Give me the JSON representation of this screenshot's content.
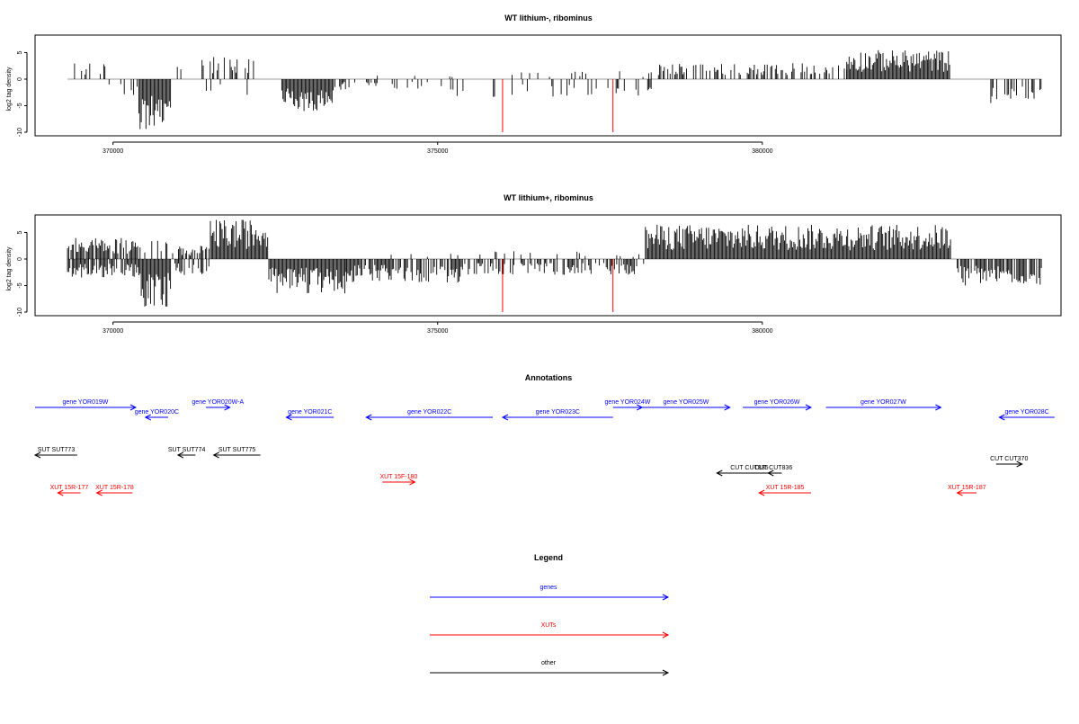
{
  "colors": {
    "gene": "#0000ff",
    "xut": "#ff0000",
    "other": "#000000",
    "highlight": "#ff0000",
    "baseline": "#999999"
  },
  "chart_data": [
    {
      "type": "bar",
      "title": "WT lithium-, ribominus",
      "ylabel": "log2 tag density",
      "xlim": [
        368800,
        384600
      ],
      "ylim": [
        -10,
        8
      ],
      "x_ticks": [
        370000,
        375000,
        380000
      ],
      "x_tick_labels": [
        "370000",
        "375000",
        "380000"
      ],
      "y_ticks": [
        -10,
        -5,
        0,
        5
      ],
      "y_tick_labels": [
        "-10",
        "-5",
        "0",
        "5"
      ],
      "grid": false,
      "highlight_lines": [
        {
          "x": 376000,
          "y": -10
        },
        {
          "x": 377700,
          "y": -10
        }
      ],
      "series": [
        {
          "segments": [
            {
              "from": 369300,
              "to": 369900,
              "sign": 1,
              "max": 3,
              "density": 0.3
            },
            {
              "from": 369850,
              "to": 370400,
              "sign": -1,
              "max": 3,
              "density": 0.2
            },
            {
              "from": 370400,
              "to": 370900,
              "sign": -1,
              "max": 9.5,
              "density": 1
            },
            {
              "from": 370900,
              "to": 371300,
              "sign": 1,
              "max": 3,
              "density": 0.2
            },
            {
              "from": 371300,
              "to": 372200,
              "sign": 1,
              "max": 4.5,
              "density": 0.35
            },
            {
              "from": 371400,
              "to": 372200,
              "sign": -1,
              "max": 3,
              "density": 0.15
            },
            {
              "from": 372600,
              "to": 373400,
              "sign": -1,
              "max": 6.5,
              "density": 1
            },
            {
              "from": 373400,
              "to": 375300,
              "sign": -1,
              "max": 2,
              "density": 0.2
            },
            {
              "from": 373800,
              "to": 375300,
              "sign": 1,
              "max": 1,
              "density": 0.08
            },
            {
              "from": 375300,
              "to": 378300,
              "sign": -1,
              "max": 3.5,
              "density": 0.2
            },
            {
              "from": 375300,
              "to": 378300,
              "sign": 1,
              "max": 1.5,
              "density": 0.08
            },
            {
              "from": 378400,
              "to": 381300,
              "sign": 1,
              "max": 3,
              "density": 0.5
            },
            {
              "from": 381300,
              "to": 382900,
              "sign": 1,
              "max": 5.5,
              "density": 1
            },
            {
              "from": 383500,
              "to": 384300,
              "sign": -1,
              "max": 4.5,
              "density": 0.4
            }
          ]
        }
      ]
    },
    {
      "type": "bar",
      "title": "WT lithium+, ribominus",
      "ylabel": "log2 tag density",
      "xlim": [
        368800,
        384600
      ],
      "ylim": [
        -10,
        8
      ],
      "x_ticks": [
        370000,
        375000,
        380000
      ],
      "x_tick_labels": [
        "370000",
        "375000",
        "380000"
      ],
      "y_ticks": [
        -10,
        -5,
        0,
        5
      ],
      "y_tick_labels": [
        "-10",
        "-5",
        "0",
        "5"
      ],
      "grid": false,
      "highlight_lines": [
        {
          "x": 376000,
          "y": -10
        },
        {
          "x": 377700,
          "y": -10
        }
      ],
      "series": [
        {
          "segments": [
            {
              "from": 369300,
              "to": 370400,
              "sign": 1,
              "max": 4,
              "density": 0.8
            },
            {
              "from": 369300,
              "to": 370400,
              "sign": -1,
              "max": 3.5,
              "density": 0.8
            },
            {
              "from": 370400,
              "to": 370900,
              "sign": -1,
              "max": 9.5,
              "density": 1
            },
            {
              "from": 370400,
              "to": 370900,
              "sign": 1,
              "max": 4,
              "density": 0.4
            },
            {
              "from": 370900,
              "to": 371500,
              "sign": 1,
              "max": 2.5,
              "density": 0.4
            },
            {
              "from": 370900,
              "to": 371500,
              "sign": -1,
              "max": 3,
              "density": 0.4
            },
            {
              "from": 371500,
              "to": 372400,
              "sign": 1,
              "max": 7.5,
              "density": 1
            },
            {
              "from": 372400,
              "to": 373600,
              "sign": -1,
              "max": 6.5,
              "density": 1
            },
            {
              "from": 373600,
              "to": 375400,
              "sign": -1,
              "max": 4.5,
              "density": 0.8
            },
            {
              "from": 373600,
              "to": 375400,
              "sign": 1,
              "max": 1,
              "density": 0.1
            },
            {
              "from": 375400,
              "to": 378200,
              "sign": -1,
              "max": 3,
              "density": 0.5
            },
            {
              "from": 375400,
              "to": 378200,
              "sign": 1,
              "max": 1.5,
              "density": 0.1
            },
            {
              "from": 378200,
              "to": 382900,
              "sign": 1,
              "max": 6.5,
              "density": 1
            },
            {
              "from": 383000,
              "to": 384300,
              "sign": -1,
              "max": 5,
              "density": 0.8
            }
          ]
        }
      ]
    },
    {
      "type": "annotation-track",
      "title": "Annotations",
      "xlim": [
        368800,
        384600
      ],
      "features": [
        {
          "label": "gene YOR019W",
          "kind": "gene",
          "start": 368800,
          "end": 370350,
          "strand": "+",
          "row": 0
        },
        {
          "label": "gene YOR020C",
          "kind": "gene",
          "start": 370500,
          "end": 370850,
          "strand": "-",
          "row": 1
        },
        {
          "label": "gene YOR020W-A",
          "kind": "gene",
          "start": 371430,
          "end": 371800,
          "strand": "+",
          "row": 0
        },
        {
          "label": "gene YOR021C",
          "kind": "gene",
          "start": 372670,
          "end": 373400,
          "strand": "-",
          "row": 1
        },
        {
          "label": "gene YOR022C",
          "kind": "gene",
          "start": 373900,
          "end": 375850,
          "strand": "-",
          "row": 1
        },
        {
          "label": "gene YOR023C",
          "kind": "gene",
          "start": 376000,
          "end": 377700,
          "strand": "-",
          "row": 1
        },
        {
          "label": "gene YOR024W",
          "kind": "gene",
          "start": 377700,
          "end": 378150,
          "strand": "+",
          "row": 0
        },
        {
          "label": "gene YOR025W",
          "kind": "gene",
          "start": 378150,
          "end": 379500,
          "strand": "+",
          "row": 0
        },
        {
          "label": "gene YOR026W",
          "kind": "gene",
          "start": 379700,
          "end": 380750,
          "strand": "+",
          "row": 0
        },
        {
          "label": "gene YOR027W",
          "kind": "gene",
          "start": 380980,
          "end": 382750,
          "strand": "+",
          "row": 0
        },
        {
          "label": "gene YOR028C",
          "kind": "gene",
          "start": 383650,
          "end": 384500,
          "strand": "-",
          "row": 1
        },
        {
          "label": "SUT SUT773",
          "kind": "other",
          "start": 368800,
          "end": 369450,
          "strand": "-",
          "row": 4
        },
        {
          "label": "SUT SUT774",
          "kind": "other",
          "start": 371000,
          "end": 371270,
          "strand": "-",
          "row": 4
        },
        {
          "label": "SUT SUT775",
          "kind": "other",
          "start": 371550,
          "end": 372270,
          "strand": "-",
          "row": 4
        },
        {
          "label": "CUT CUT835",
          "kind": "other",
          "start": 379300,
          "end": 380300,
          "strand": "-",
          "row": 6
        },
        {
          "label": "CUT CUT836",
          "kind": "other",
          "start": 380090,
          "end": 380250,
          "strand": "-",
          "row": 6
        },
        {
          "label": "CUT CUT370",
          "kind": "other",
          "start": 383600,
          "end": 384000,
          "strand": "+",
          "row": 5
        },
        {
          "label": "XUT 15R-177",
          "kind": "xut",
          "start": 369150,
          "end": 369500,
          "strand": "-",
          "row": 8
        },
        {
          "label": "XUT 15R-178",
          "kind": "xut",
          "start": 369750,
          "end": 370300,
          "strand": "-",
          "row": 8
        },
        {
          "label": "XUT 15F-180",
          "kind": "xut",
          "start": 374150,
          "end": 374650,
          "strand": "+",
          "row": 7
        },
        {
          "label": "XUT 15R-185",
          "kind": "xut",
          "start": 379950,
          "end": 380750,
          "strand": "-",
          "row": 8
        },
        {
          "label": "XUT 15R-187",
          "kind": "xut",
          "start": 383000,
          "end": 383300,
          "strand": "-",
          "row": 8
        }
      ]
    },
    {
      "type": "legend",
      "title": "Legend",
      "entries": [
        {
          "label": "genes",
          "kind": "gene"
        },
        {
          "label": "XUTs",
          "kind": "xut"
        },
        {
          "label": "other",
          "kind": "other"
        }
      ]
    }
  ]
}
